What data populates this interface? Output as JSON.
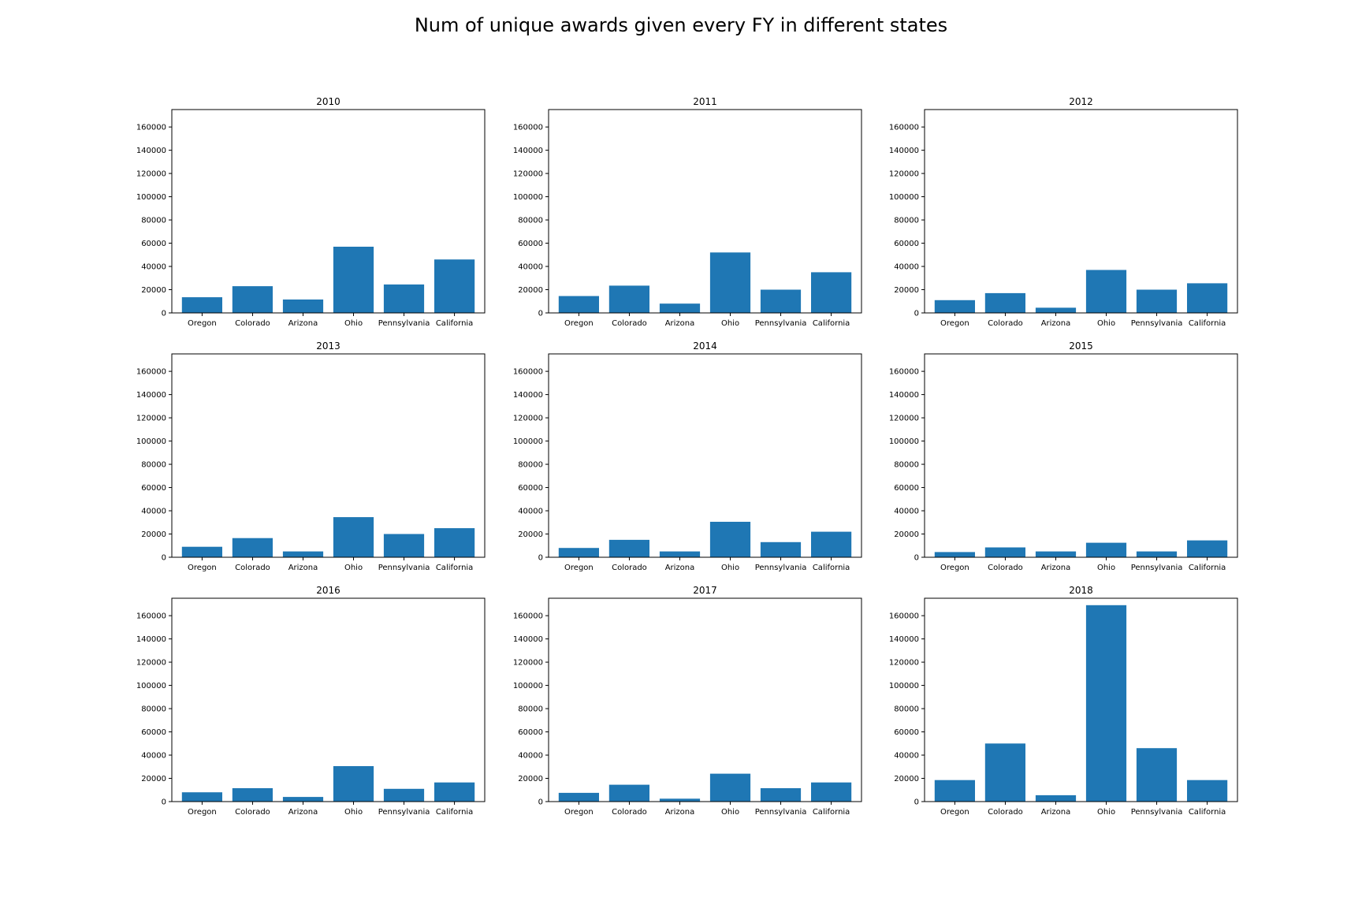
{
  "page": {
    "title": "Num of unique awards given every FY in different states"
  },
  "style": {
    "bar_color": "#1f77b4",
    "axes_color": "#000000",
    "background": "#ffffff"
  },
  "chart_data": [
    {
      "type": "bar",
      "title": "2010",
      "categories": [
        "Oregon",
        "Colorado",
        "Arizona",
        "Ohio",
        "Pennsylvania",
        "California"
      ],
      "values": [
        13500,
        23000,
        11500,
        57000,
        24500,
        46000
      ],
      "ylim": [
        0,
        175000
      ],
      "yticks": [
        0,
        20000,
        40000,
        60000,
        80000,
        100000,
        120000,
        140000,
        160000
      ],
      "grid": false
    },
    {
      "type": "bar",
      "title": "2011",
      "categories": [
        "Oregon",
        "Colorado",
        "Arizona",
        "Ohio",
        "Pennsylvania",
        "California"
      ],
      "values": [
        14500,
        23500,
        8000,
        52000,
        20000,
        35000
      ],
      "ylim": [
        0,
        175000
      ],
      "yticks": [
        0,
        20000,
        40000,
        60000,
        80000,
        100000,
        120000,
        140000,
        160000
      ],
      "grid": false
    },
    {
      "type": "bar",
      "title": "2012",
      "categories": [
        "Oregon",
        "Colorado",
        "Arizona",
        "Ohio",
        "Pennsylvania",
        "California"
      ],
      "values": [
        11000,
        17000,
        4500,
        37000,
        20000,
        25500
      ],
      "ylim": [
        0,
        175000
      ],
      "yticks": [
        0,
        20000,
        40000,
        60000,
        80000,
        100000,
        120000,
        140000,
        160000
      ],
      "grid": false
    },
    {
      "type": "bar",
      "title": "2013",
      "categories": [
        "Oregon",
        "Colorado",
        "Arizona",
        "Ohio",
        "Pennsylvania",
        "California"
      ],
      "values": [
        9000,
        16500,
        5000,
        34500,
        20000,
        25000
      ],
      "ylim": [
        0,
        175000
      ],
      "yticks": [
        0,
        20000,
        40000,
        60000,
        80000,
        100000,
        120000,
        140000,
        160000
      ],
      "grid": false
    },
    {
      "type": "bar",
      "title": "2014",
      "categories": [
        "Oregon",
        "Colorado",
        "Arizona",
        "Ohio",
        "Pennsylvania",
        "California"
      ],
      "values": [
        8000,
        15000,
        5000,
        30500,
        13000,
        22000
      ],
      "ylim": [
        0,
        175000
      ],
      "yticks": [
        0,
        20000,
        40000,
        60000,
        80000,
        100000,
        120000,
        140000,
        160000
      ],
      "grid": false
    },
    {
      "type": "bar",
      "title": "2015",
      "categories": [
        "Oregon",
        "Colorado",
        "Arizona",
        "Ohio",
        "Pennsylvania",
        "California"
      ],
      "values": [
        4500,
        8500,
        5000,
        12500,
        5000,
        14500
      ],
      "ylim": [
        0,
        175000
      ],
      "yticks": [
        0,
        20000,
        40000,
        60000,
        80000,
        100000,
        120000,
        140000,
        160000
      ],
      "grid": false
    },
    {
      "type": "bar",
      "title": "2016",
      "categories": [
        "Oregon",
        "Colorado",
        "Arizona",
        "Ohio",
        "Pennsylvania",
        "California"
      ],
      "values": [
        8000,
        11500,
        4000,
        30500,
        11000,
        16500
      ],
      "ylim": [
        0,
        175000
      ],
      "yticks": [
        0,
        20000,
        40000,
        60000,
        80000,
        100000,
        120000,
        140000,
        160000
      ],
      "grid": false
    },
    {
      "type": "bar",
      "title": "2017",
      "categories": [
        "Oregon",
        "Colorado",
        "Arizona",
        "Ohio",
        "Pennsylvania",
        "California"
      ],
      "values": [
        7500,
        14500,
        2500,
        24000,
        11500,
        16500
      ],
      "ylim": [
        0,
        175000
      ],
      "yticks": [
        0,
        20000,
        40000,
        60000,
        80000,
        100000,
        120000,
        140000,
        160000
      ],
      "grid": false
    },
    {
      "type": "bar",
      "title": "2018",
      "categories": [
        "Oregon",
        "Colorado",
        "Arizona",
        "Ohio",
        "Pennsylvania",
        "California"
      ],
      "values": [
        18500,
        50000,
        5500,
        169000,
        46000,
        18500
      ],
      "ylim": [
        0,
        175000
      ],
      "yticks": [
        0,
        20000,
        40000,
        60000,
        80000,
        100000,
        120000,
        140000,
        160000
      ],
      "grid": false
    }
  ]
}
